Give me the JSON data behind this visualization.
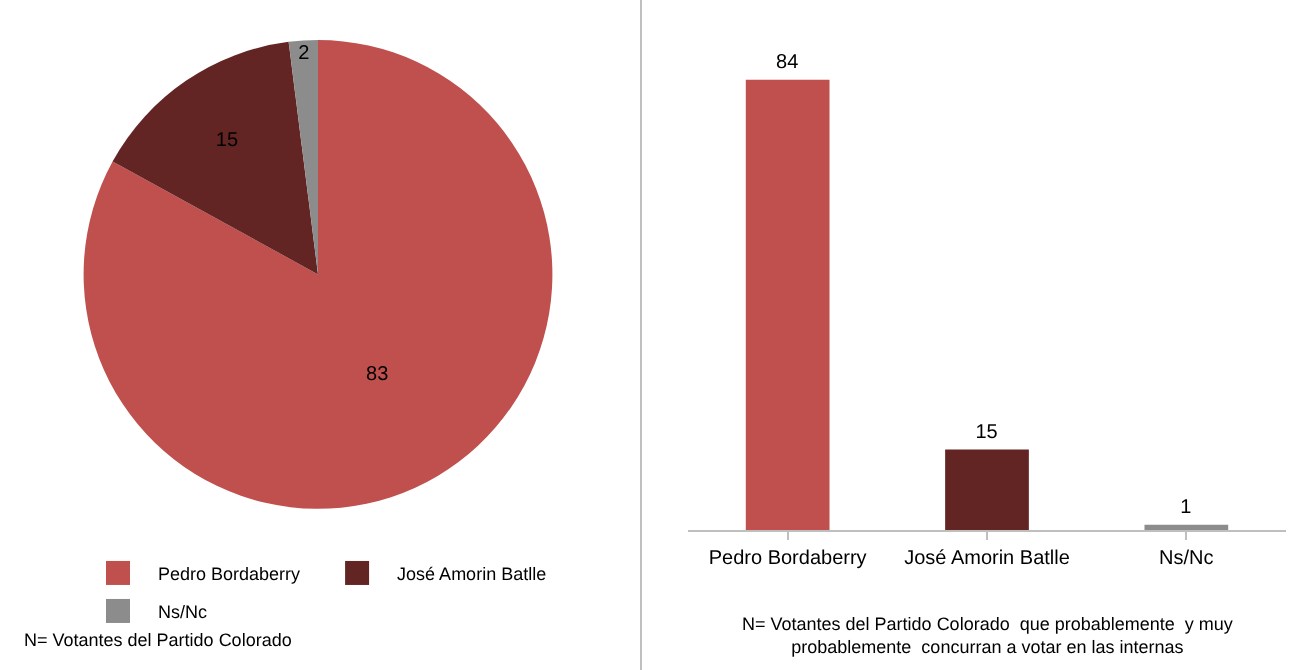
{
  "chart_data": [
    {
      "type": "pie",
      "categories": [
        "Pedro Bordaberry",
        "José Amorin Batlle",
        "Ns/Nc"
      ],
      "values": [
        83,
        15,
        2
      ],
      "colors": [
        "#c0504d",
        "#632523",
        "#8c8c8c"
      ],
      "data_labels": true,
      "legend": "bottom",
      "annotations": [
        "N= Votantes del Partido Colorado"
      ]
    },
    {
      "type": "bar",
      "categories": [
        "Pedro Bordaberry",
        "José Amorin Batlle",
        "Ns/Nc"
      ],
      "values": [
        84,
        15,
        1
      ],
      "colors": [
        "#c0504d",
        "#632523",
        "#8c8c8c"
      ],
      "data_labels": true,
      "legend": false,
      "annotations": [
        "N= Votantes del Partido Colorado  que probablemente  y muy\nprobablemente  concurran a votar en las internas"
      ]
    }
  ]
}
